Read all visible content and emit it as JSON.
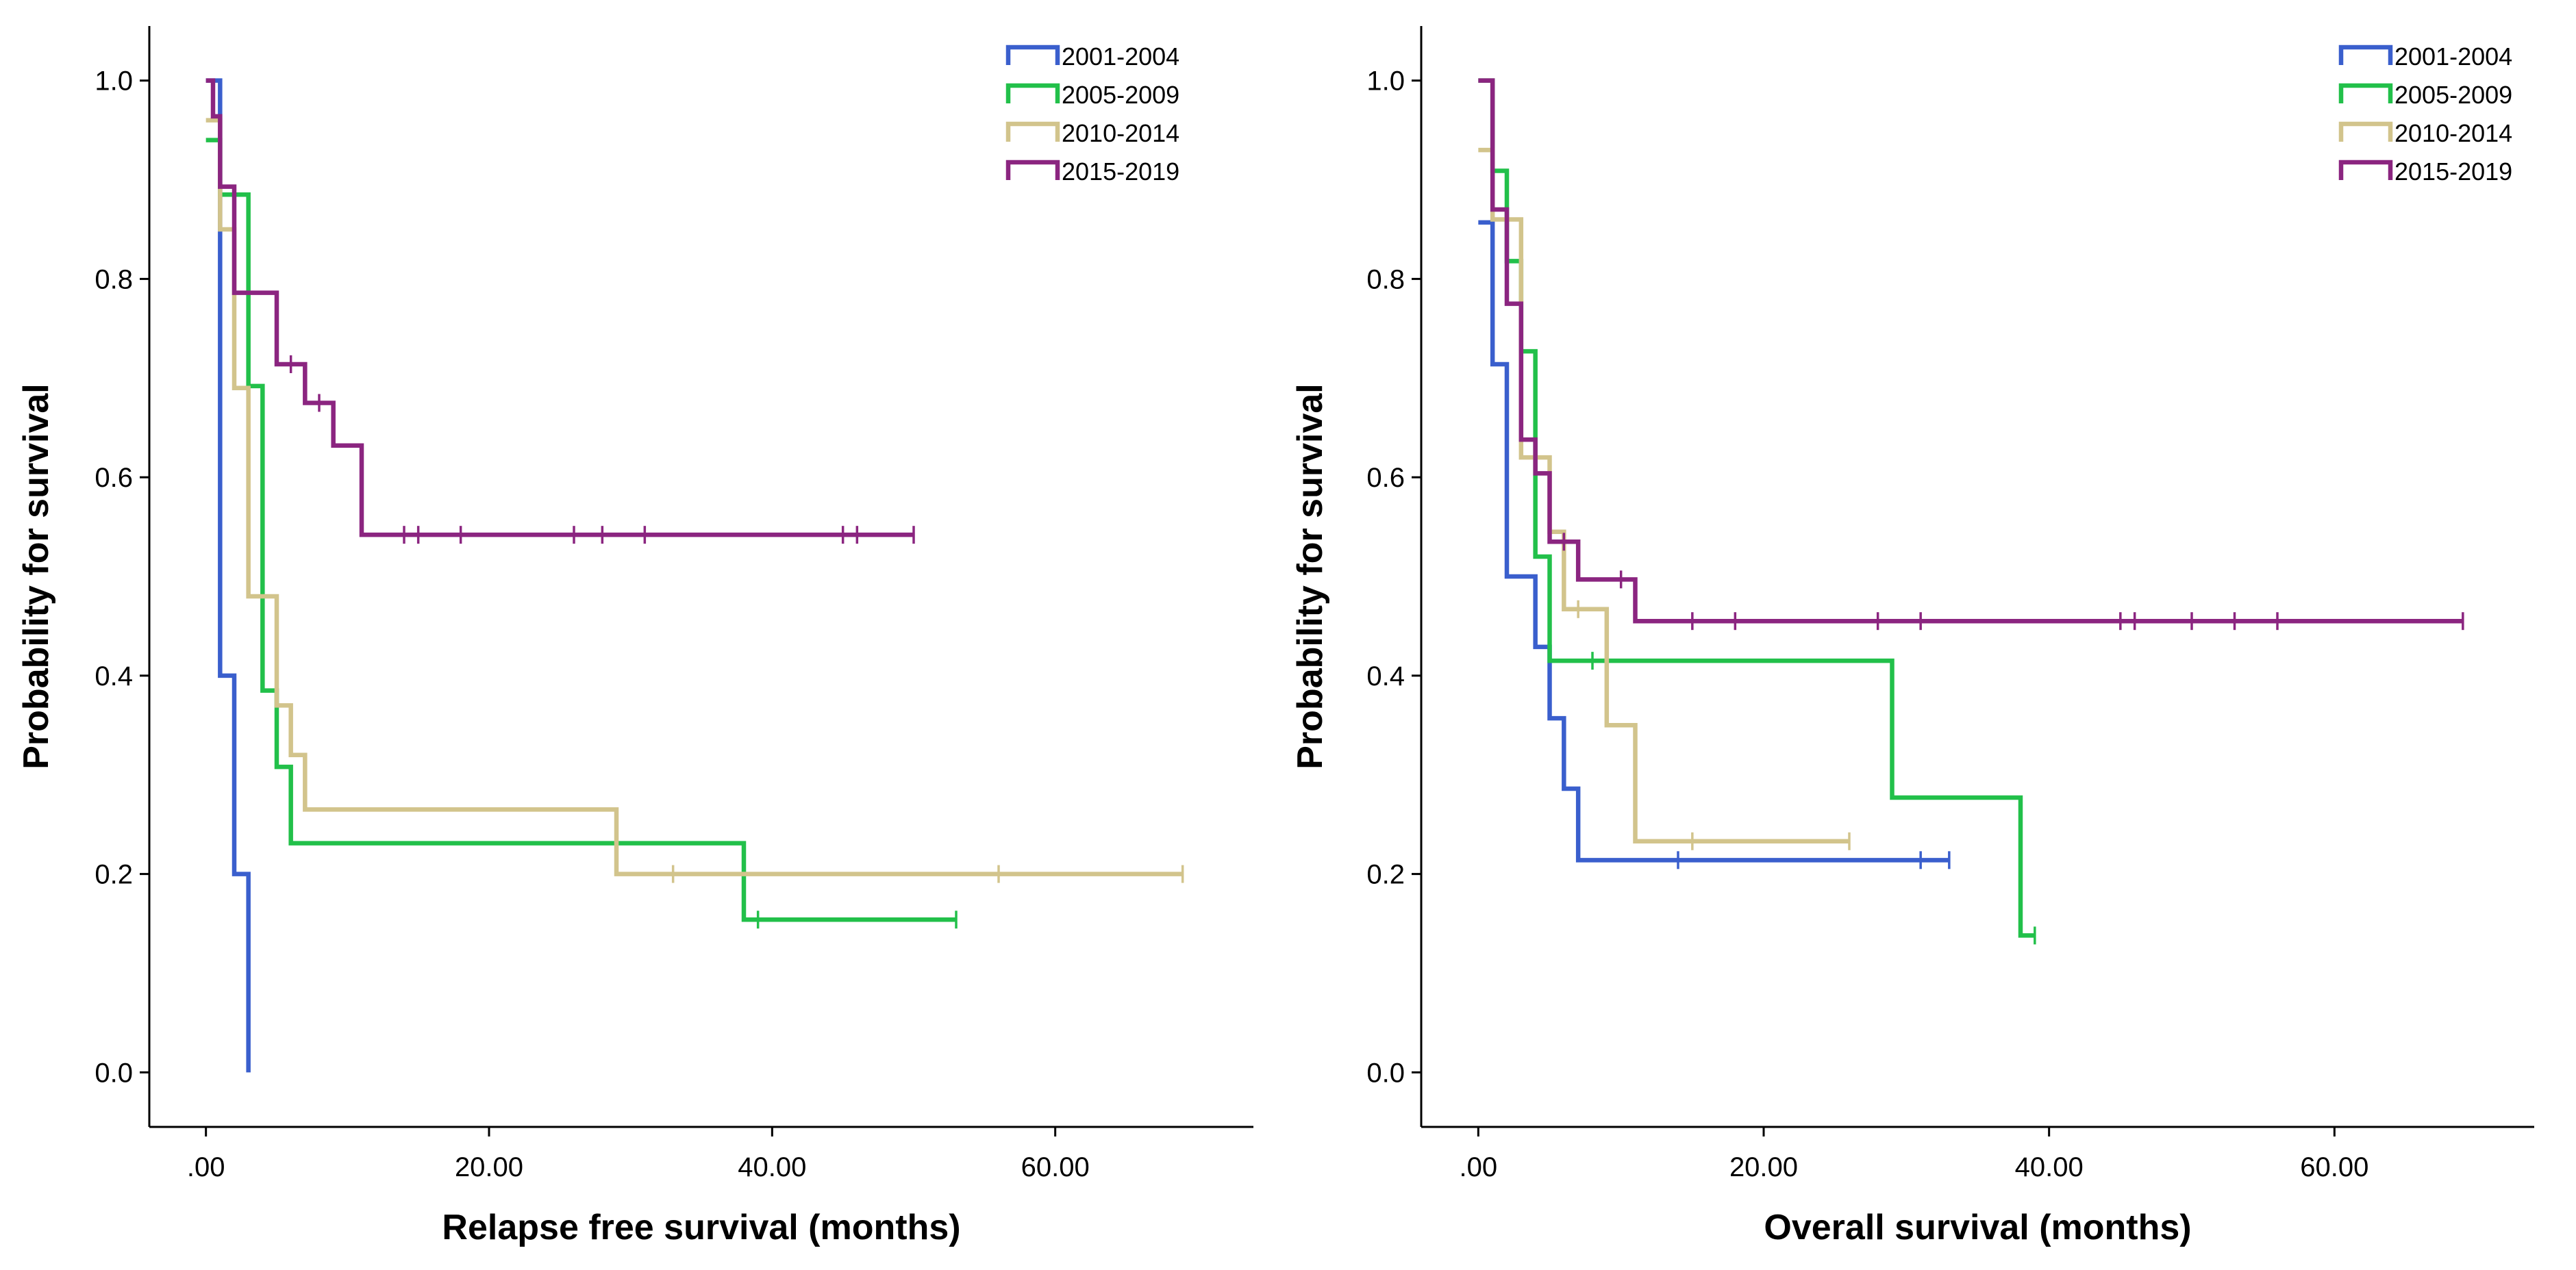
{
  "chart_data": [
    {
      "type": "line",
      "subtype": "kaplan-meier-step",
      "title": "",
      "xlabel": "Relapse free survival (months)",
      "ylabel": "Probability for survival",
      "xlim": [
        -4,
        74
      ],
      "ylim": [
        -0.055,
        1.055
      ],
      "xticks": [
        0,
        20,
        40,
        60
      ],
      "xtick_labels": [
        ".00",
        "20.00",
        "40.00",
        "60.00"
      ],
      "yticks": [
        0.0,
        0.2,
        0.4,
        0.6,
        0.8,
        1.0
      ],
      "ytick_labels": [
        "0.0",
        "0.2",
        "0.4",
        "0.6",
        "0.8",
        "1.0"
      ],
      "legend_position": "top-right",
      "series": [
        {
          "name": "2001-2004",
          "color": "#3A5FCD",
          "steps": [
            [
              0,
              1.0
            ],
            [
              1,
              0.4
            ],
            [
              2,
              0.2
            ],
            [
              3,
              0.0
            ]
          ],
          "censored": []
        },
        {
          "name": "2005-2009",
          "color": "#22C04A",
          "steps": [
            [
              0,
              0.94
            ],
            [
              1,
              0.885
            ],
            [
              3,
              0.692
            ],
            [
              4,
              0.385
            ],
            [
              5,
              0.308
            ],
            [
              6,
              0.231
            ],
            [
              38,
              0.154
            ]
          ],
          "end": 53,
          "censored": [
            39,
            53
          ]
        },
        {
          "name": "2010-2014",
          "color": "#D2C48C",
          "steps": [
            [
              0,
              0.96
            ],
            [
              1,
              0.85
            ],
            [
              2,
              0.69
            ],
            [
              3,
              0.48
            ],
            [
              5,
              0.37
            ],
            [
              6,
              0.32
            ],
            [
              7,
              0.265
            ],
            [
              29,
              0.2
            ]
          ],
          "end": 69,
          "censored": [
            33,
            56,
            69
          ]
        },
        {
          "name": "2015-2019",
          "color": "#8B2580",
          "steps": [
            [
              0,
              1.0
            ],
            [
              0.5,
              0.964
            ],
            [
              1,
              0.893
            ],
            [
              2,
              0.786
            ],
            [
              5,
              0.714
            ],
            [
              7,
              0.675
            ],
            [
              9,
              0.632
            ],
            [
              11,
              0.542
            ]
          ],
          "end": 50,
          "censored": [
            6,
            8,
            14,
            15,
            18,
            26,
            28,
            31,
            45,
            46,
            50
          ]
        }
      ]
    },
    {
      "type": "line",
      "subtype": "kaplan-meier-step",
      "title": "",
      "xlabel": "Overall survival (months)",
      "ylabel": "Probability for survival",
      "xlim": [
        -4,
        74
      ],
      "ylim": [
        -0.055,
        1.055
      ],
      "xticks": [
        0,
        20,
        40,
        60
      ],
      "xtick_labels": [
        ".00",
        "20.00",
        "40.00",
        "60.00"
      ],
      "yticks": [
        0.0,
        0.2,
        0.4,
        0.6,
        0.8,
        1.0
      ],
      "ytick_labels": [
        "0.0",
        "0.2",
        "0.4",
        "0.6",
        "0.8",
        "1.0"
      ],
      "legend_position": "top-right",
      "series": [
        {
          "name": "2001-2004",
          "color": "#3A5FCD",
          "steps": [
            [
              0,
              0.857
            ],
            [
              1,
              0.714
            ],
            [
              2,
              0.5
            ],
            [
              4,
              0.429
            ],
            [
              5,
              0.357
            ],
            [
              6,
              0.286
            ],
            [
              7,
              0.214
            ]
          ],
          "end": 33,
          "censored": [
            14,
            31,
            33
          ]
        },
        {
          "name": "2005-2009",
          "color": "#22C04A",
          "steps": [
            [
              0,
              1.0
            ],
            [
              1,
              0.909
            ],
            [
              2,
              0.818
            ],
            [
              3,
              0.727
            ],
            [
              4,
              0.52
            ],
            [
              5,
              0.415
            ],
            [
              29,
              0.277
            ],
            [
              38,
              0.138
            ]
          ],
          "end": 39,
          "censored": [
            8,
            39
          ]
        },
        {
          "name": "2010-2014",
          "color": "#D2C48C",
          "steps": [
            [
              0,
              0.93
            ],
            [
              1,
              0.86
            ],
            [
              3,
              0.62
            ],
            [
              5,
              0.545
            ],
            [
              6,
              0.467
            ],
            [
              9,
              0.35
            ],
            [
              11,
              0.233
            ]
          ],
          "end": 26,
          "censored": [
            7,
            15,
            26
          ]
        },
        {
          "name": "2015-2019",
          "color": "#8B2580",
          "steps": [
            [
              0,
              1.0
            ],
            [
              1,
              0.87
            ],
            [
              2,
              0.775
            ],
            [
              3,
              0.638
            ],
            [
              4,
              0.604
            ],
            [
              5,
              0.535
            ],
            [
              7,
              0.497
            ],
            [
              11,
              0.455
            ]
          ],
          "end": 69,
          "censored": [
            6,
            10,
            15,
            18,
            28,
            31,
            45,
            46,
            50,
            53,
            56,
            69
          ]
        }
      ]
    }
  ]
}
